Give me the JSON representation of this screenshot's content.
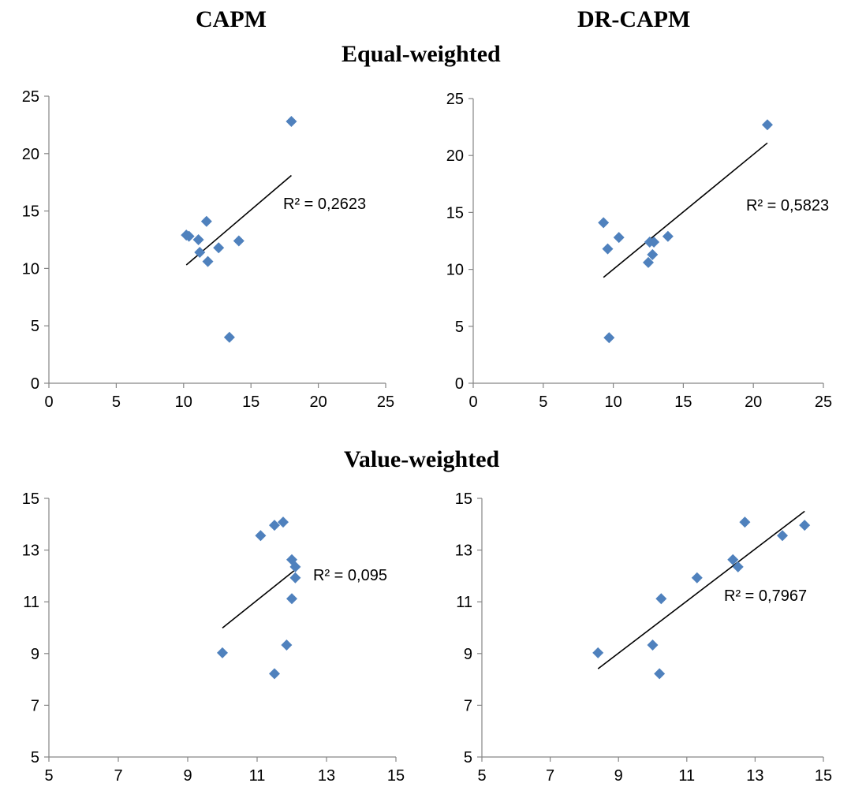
{
  "headers": {
    "col_left": "CAPM",
    "col_right": "DR-CAPM",
    "row_top": "Equal-weighted",
    "row_bottom": "Value-weighted"
  },
  "colors": {
    "marker": "#4F81BD",
    "trendline": "#000000",
    "axis": "#868686"
  },
  "chart_data": [
    {
      "type": "scatter",
      "model": "CAPM",
      "weighting": "Equal-weighted",
      "xlim": [
        0,
        25
      ],
      "ylim": [
        0,
        25
      ],
      "xticks": [
        0,
        5,
        10,
        15,
        20,
        25
      ],
      "yticks": [
        0,
        5,
        10,
        15,
        20,
        25
      ],
      "grid": false,
      "points": [
        [
          10.2,
          12.9
        ],
        [
          10.4,
          12.8
        ],
        [
          11.1,
          12.5
        ],
        [
          11.2,
          11.4
        ],
        [
          11.7,
          14.1
        ],
        [
          11.8,
          10.6
        ],
        [
          12.6,
          11.8
        ],
        [
          14.1,
          12.4
        ],
        [
          18.0,
          22.8
        ],
        [
          13.4,
          4.0
        ]
      ],
      "trendline": {
        "x": [
          10.2,
          18.0
        ],
        "y": [
          10.3,
          18.1
        ]
      },
      "r2_label": "R² = 0,2623"
    },
    {
      "type": "scatter",
      "model": "DR-CAPM",
      "weighting": "Equal-weighted",
      "xlim": [
        0,
        25
      ],
      "ylim": [
        0,
        25
      ],
      "xticks": [
        0,
        5,
        10,
        15,
        20,
        25
      ],
      "yticks": [
        0,
        5,
        10,
        15,
        20,
        25
      ],
      "grid": false,
      "points": [
        [
          9.3,
          14.1
        ],
        [
          9.6,
          11.8
        ],
        [
          9.7,
          4.0
        ],
        [
          10.4,
          12.8
        ],
        [
          12.5,
          10.6
        ],
        [
          12.6,
          12.4
        ],
        [
          12.8,
          11.3
        ],
        [
          12.9,
          12.4
        ],
        [
          13.9,
          12.9
        ],
        [
          21.0,
          22.7
        ]
      ],
      "trendline": {
        "x": [
          9.3,
          21.0
        ],
        "y": [
          9.3,
          21.1
        ]
      },
      "r2_label": "R² = 0,5823"
    },
    {
      "type": "scatter",
      "model": "CAPM",
      "weighting": "Value-weighted",
      "xlim": [
        5,
        15
      ],
      "ylim": [
        5,
        15
      ],
      "xticks": [
        5,
        7,
        9,
        11,
        13,
        15
      ],
      "yticks": [
        5,
        7,
        9,
        11,
        13,
        15
      ],
      "grid": false,
      "points": [
        [
          10.0,
          9.03
        ],
        [
          11.1,
          13.56
        ],
        [
          11.5,
          13.96
        ],
        [
          11.5,
          8.22
        ],
        [
          11.75,
          14.08
        ],
        [
          11.85,
          9.33
        ],
        [
          12.0,
          12.63
        ],
        [
          12.0,
          11.12
        ],
        [
          12.1,
          12.35
        ],
        [
          12.1,
          11.93
        ]
      ],
      "trendline": {
        "x": [
          10.0,
          12.1
        ],
        "y": [
          9.99,
          12.24
        ]
      },
      "r2_label": "R² = 0,095"
    },
    {
      "type": "scatter",
      "model": "DR-CAPM",
      "weighting": "Value-weighted",
      "xlim": [
        5,
        15
      ],
      "ylim": [
        5,
        15
      ],
      "xticks": [
        5,
        7,
        9,
        11,
        13,
        15
      ],
      "yticks": [
        5,
        7,
        9,
        11,
        13,
        15
      ],
      "grid": false,
      "points": [
        [
          8.4,
          9.03
        ],
        [
          10.0,
          9.33
        ],
        [
          10.2,
          8.22
        ],
        [
          10.25,
          11.12
        ],
        [
          11.3,
          11.93
        ],
        [
          12.35,
          12.63
        ],
        [
          12.5,
          12.35
        ],
        [
          12.7,
          14.08
        ],
        [
          13.8,
          13.56
        ],
        [
          14.45,
          13.96
        ]
      ],
      "trendline": {
        "x": [
          8.4,
          14.45
        ],
        "y": [
          8.41,
          14.5
        ]
      },
      "r2_label": "R² = 0,7967"
    }
  ]
}
